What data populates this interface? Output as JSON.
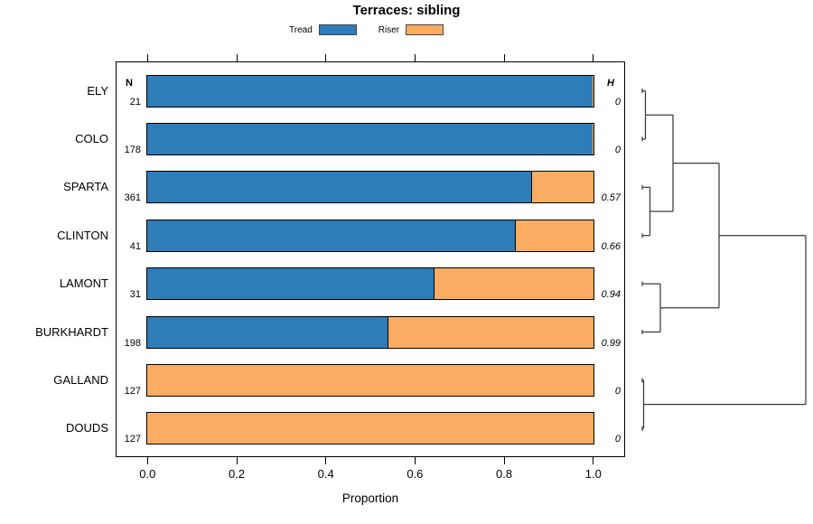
{
  "chart_data": {
    "type": "bar",
    "orientation": "horizontal-stacked",
    "title": "Terraces: sibling",
    "xlabel": "Proportion",
    "xlim": [
      0,
      1
    ],
    "x_ticks": [
      0.0,
      0.2,
      0.4,
      0.6,
      0.8,
      1.0
    ],
    "x_tick_labels": [
      "0.0",
      "0.2",
      "0.4",
      "0.6",
      "0.8",
      "1.0"
    ],
    "grid": false,
    "legend": {
      "position": "top",
      "items": [
        {
          "label": "Tread",
          "color": "#2E7DB9"
        },
        {
          "label": "Riser",
          "color": "#FBAC63"
        }
      ]
    },
    "columns": {
      "n_header": "N",
      "h_header": "H"
    },
    "rows": [
      {
        "name": "ELY",
        "n": 21,
        "h": "0",
        "tread": 1.0,
        "riser": 0.0
      },
      {
        "name": "COLO",
        "n": 178,
        "h": "0",
        "tread": 1.0,
        "riser": 0.0
      },
      {
        "name": "SPARTA",
        "n": 361,
        "h": "0.57",
        "tread": 0.865,
        "riser": 0.135
      },
      {
        "name": "CLINTON",
        "n": 41,
        "h": "0.66",
        "tread": 0.828,
        "riser": 0.172
      },
      {
        "name": "LAMONT",
        "n": 31,
        "h": "0.94",
        "tread": 0.645,
        "riser": 0.355
      },
      {
        "name": "BURKHARDT",
        "n": 198,
        "h": "0.99",
        "tread": 0.542,
        "riser": 0.458
      },
      {
        "name": "GALLAND",
        "n": 127,
        "h": "0",
        "tread": 0.0,
        "riser": 1.0
      },
      {
        "name": "DOUDS",
        "n": 127,
        "h": "0",
        "tread": 0.0,
        "riser": 1.0
      }
    ],
    "dendrogram": {
      "side": "right",
      "leaves": [
        "ELY",
        "COLO",
        "SPARTA",
        "CLINTON",
        "LAMONT",
        "BURKHARDT",
        "GALLAND",
        "DOUDS"
      ],
      "nodes": [
        {
          "id": "A",
          "children": [
            "ELY",
            "COLO"
          ],
          "depth": 3.5
        },
        {
          "id": "B",
          "children": [
            "SPARTA",
            "CLINTON"
          ],
          "depth": 8.5
        },
        {
          "id": "AB",
          "children": [
            "A",
            "B"
          ],
          "depth": 34
        },
        {
          "id": "CD",
          "children": [
            "LAMONT",
            "BURKHARDT"
          ],
          "depth": 20
        },
        {
          "id": "ABCD",
          "children": [
            "AB",
            "CD"
          ],
          "depth": 85
        },
        {
          "id": "EF",
          "children": [
            "GALLAND",
            "DOUDS"
          ],
          "depth": 1.5
        },
        {
          "id": "ROOT",
          "children": [
            "ABCD",
            "EF"
          ],
          "depth": 181
        }
      ]
    },
    "colors": {
      "tread": "#2E7DB9",
      "riser": "#FBAC63",
      "axis": "#000000",
      "dendrogram": "#3A3A3A"
    }
  }
}
